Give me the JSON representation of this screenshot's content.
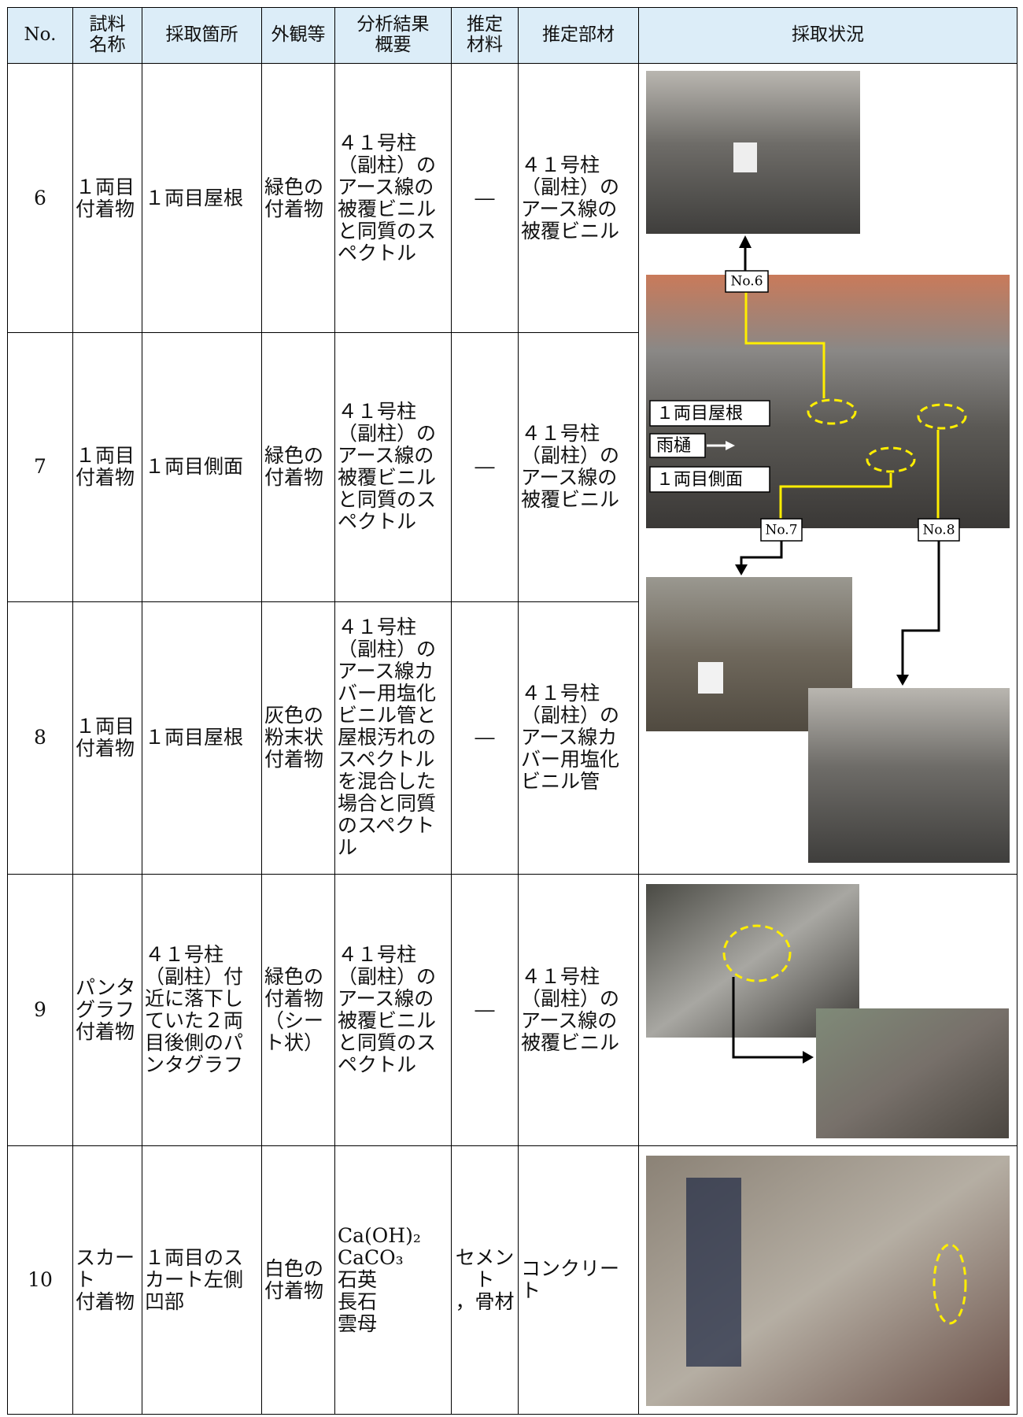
{
  "table": {
    "header": [
      "No.",
      "試料\n名称",
      "採取箇所",
      "外観等",
      "分析結果\n概要",
      "推定\n材料",
      "推定部材",
      "採取状況"
    ],
    "rows": [
      [
        "6",
        "１両目付着物",
        "１両目屋根",
        "緑色の付着物",
        "４１号柱（副柱）のアース線の被覆ビニルと同質のスペクトル",
        "―",
        "４１号柱（副柱）のアース線の被覆ビニル"
      ],
      [
        "7",
        "１両目付着物",
        "１両目側面",
        "緑色の付着物",
        "４１号柱（副柱）のアース線の被覆ビニルと同質のスペクトル",
        "―",
        "４１号柱（副柱）のアース線の被覆ビニル"
      ],
      [
        "8",
        "１両目付着物",
        "１両目屋根",
        "灰色の粉末状付着物",
        "４１号柱（副柱）のアース線カバー用塩化ビニル管と屋根汚れのスペクトルを混合した場合と同質のスペクトル",
        "―",
        "４１号柱（副柱）のアース線カバー用塩化ビニル管"
      ],
      [
        "9",
        "パンタグラフ付着物",
        "４１号柱（副柱）付近に落下していた２両目後側のパンタグラフ",
        "緑色の付着物（シート状）",
        "４１号柱（副柱）のアース線の被覆ビニルと同質のスペクトル",
        "―",
        "４１号柱（副柱）のアース線の被覆ビニル"
      ],
      [
        "10",
        "スカート\n付着物",
        "１両目のスカート左側凹部",
        "白色の付着物",
        "Ca(OH)₂\nCaCO₃\n石英\n長石\n雲母",
        "セメント\n，骨材",
        "コンクリート"
      ]
    ]
  },
  "photo_labels": {
    "no6": "No.6",
    "no7": "No.7",
    "no8": "No.8",
    "roof": "１両目屋根",
    "gutter": "雨樋",
    "side": "１両目側面"
  }
}
